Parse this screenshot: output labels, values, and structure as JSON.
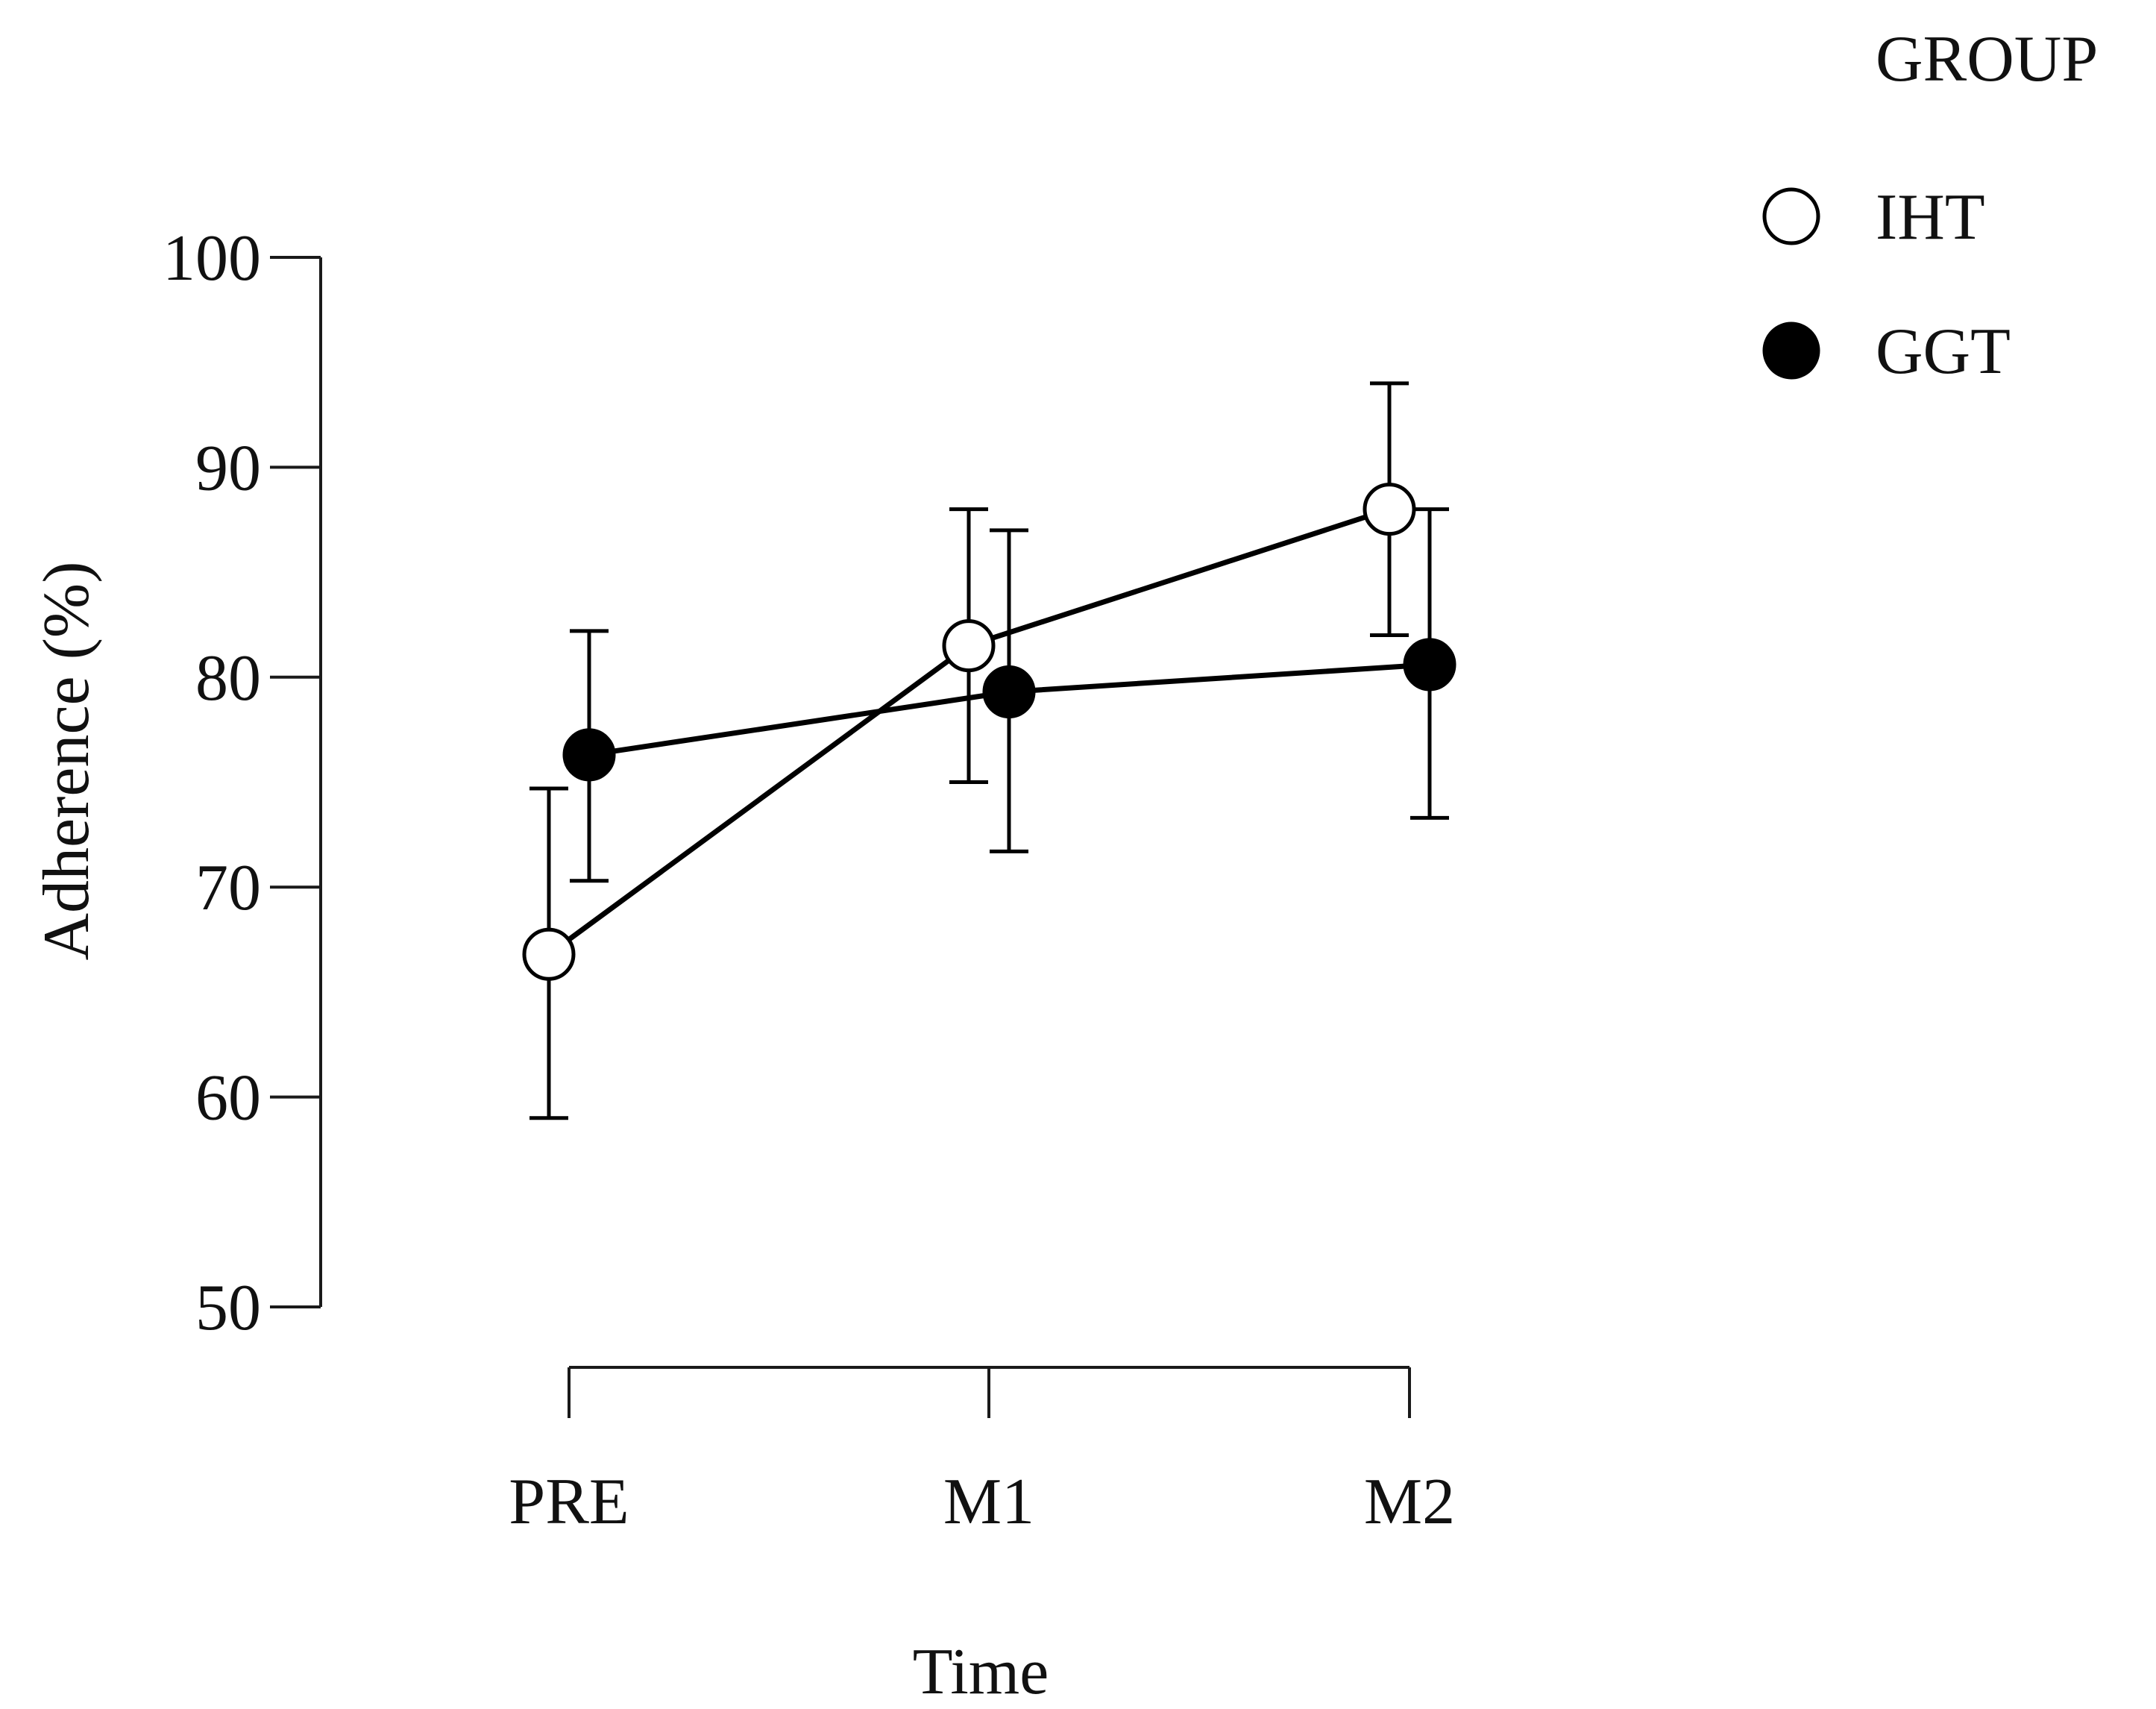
{
  "chart_data": {
    "type": "line",
    "title": "",
    "xlabel": "Time",
    "ylabel": "Adherence (%)",
    "categories": [
      "PRE",
      "M1",
      "M2"
    ],
    "ylim": [
      50,
      100
    ],
    "yticks": [
      50,
      60,
      70,
      80,
      90,
      100
    ],
    "ytick_labels": [
      "50",
      "60",
      "70",
      "80",
      "90",
      "100"
    ],
    "grid": false,
    "legend": {
      "title": "GROUP",
      "placement": "top-right"
    },
    "series": [
      {
        "name": "IHT",
        "marker": "open-circle",
        "values": [
          66.8,
          81.5,
          88.0
        ],
        "error_low": [
          59.0,
          75.0,
          82.0
        ],
        "error_high": [
          74.7,
          88.0,
          94.0
        ]
      },
      {
        "name": "GGT",
        "marker": "filled-circle",
        "values": [
          76.3,
          79.3,
          80.6
        ],
        "error_low": [
          70.3,
          71.7,
          73.3
        ],
        "error_high": [
          82.2,
          87.0,
          88.0
        ]
      }
    ]
  },
  "colors": {
    "line": "#000000",
    "open_fill": "#ffffff",
    "filled_fill": "#000000",
    "axis": "#1a1a1a",
    "text": "#111111"
  }
}
